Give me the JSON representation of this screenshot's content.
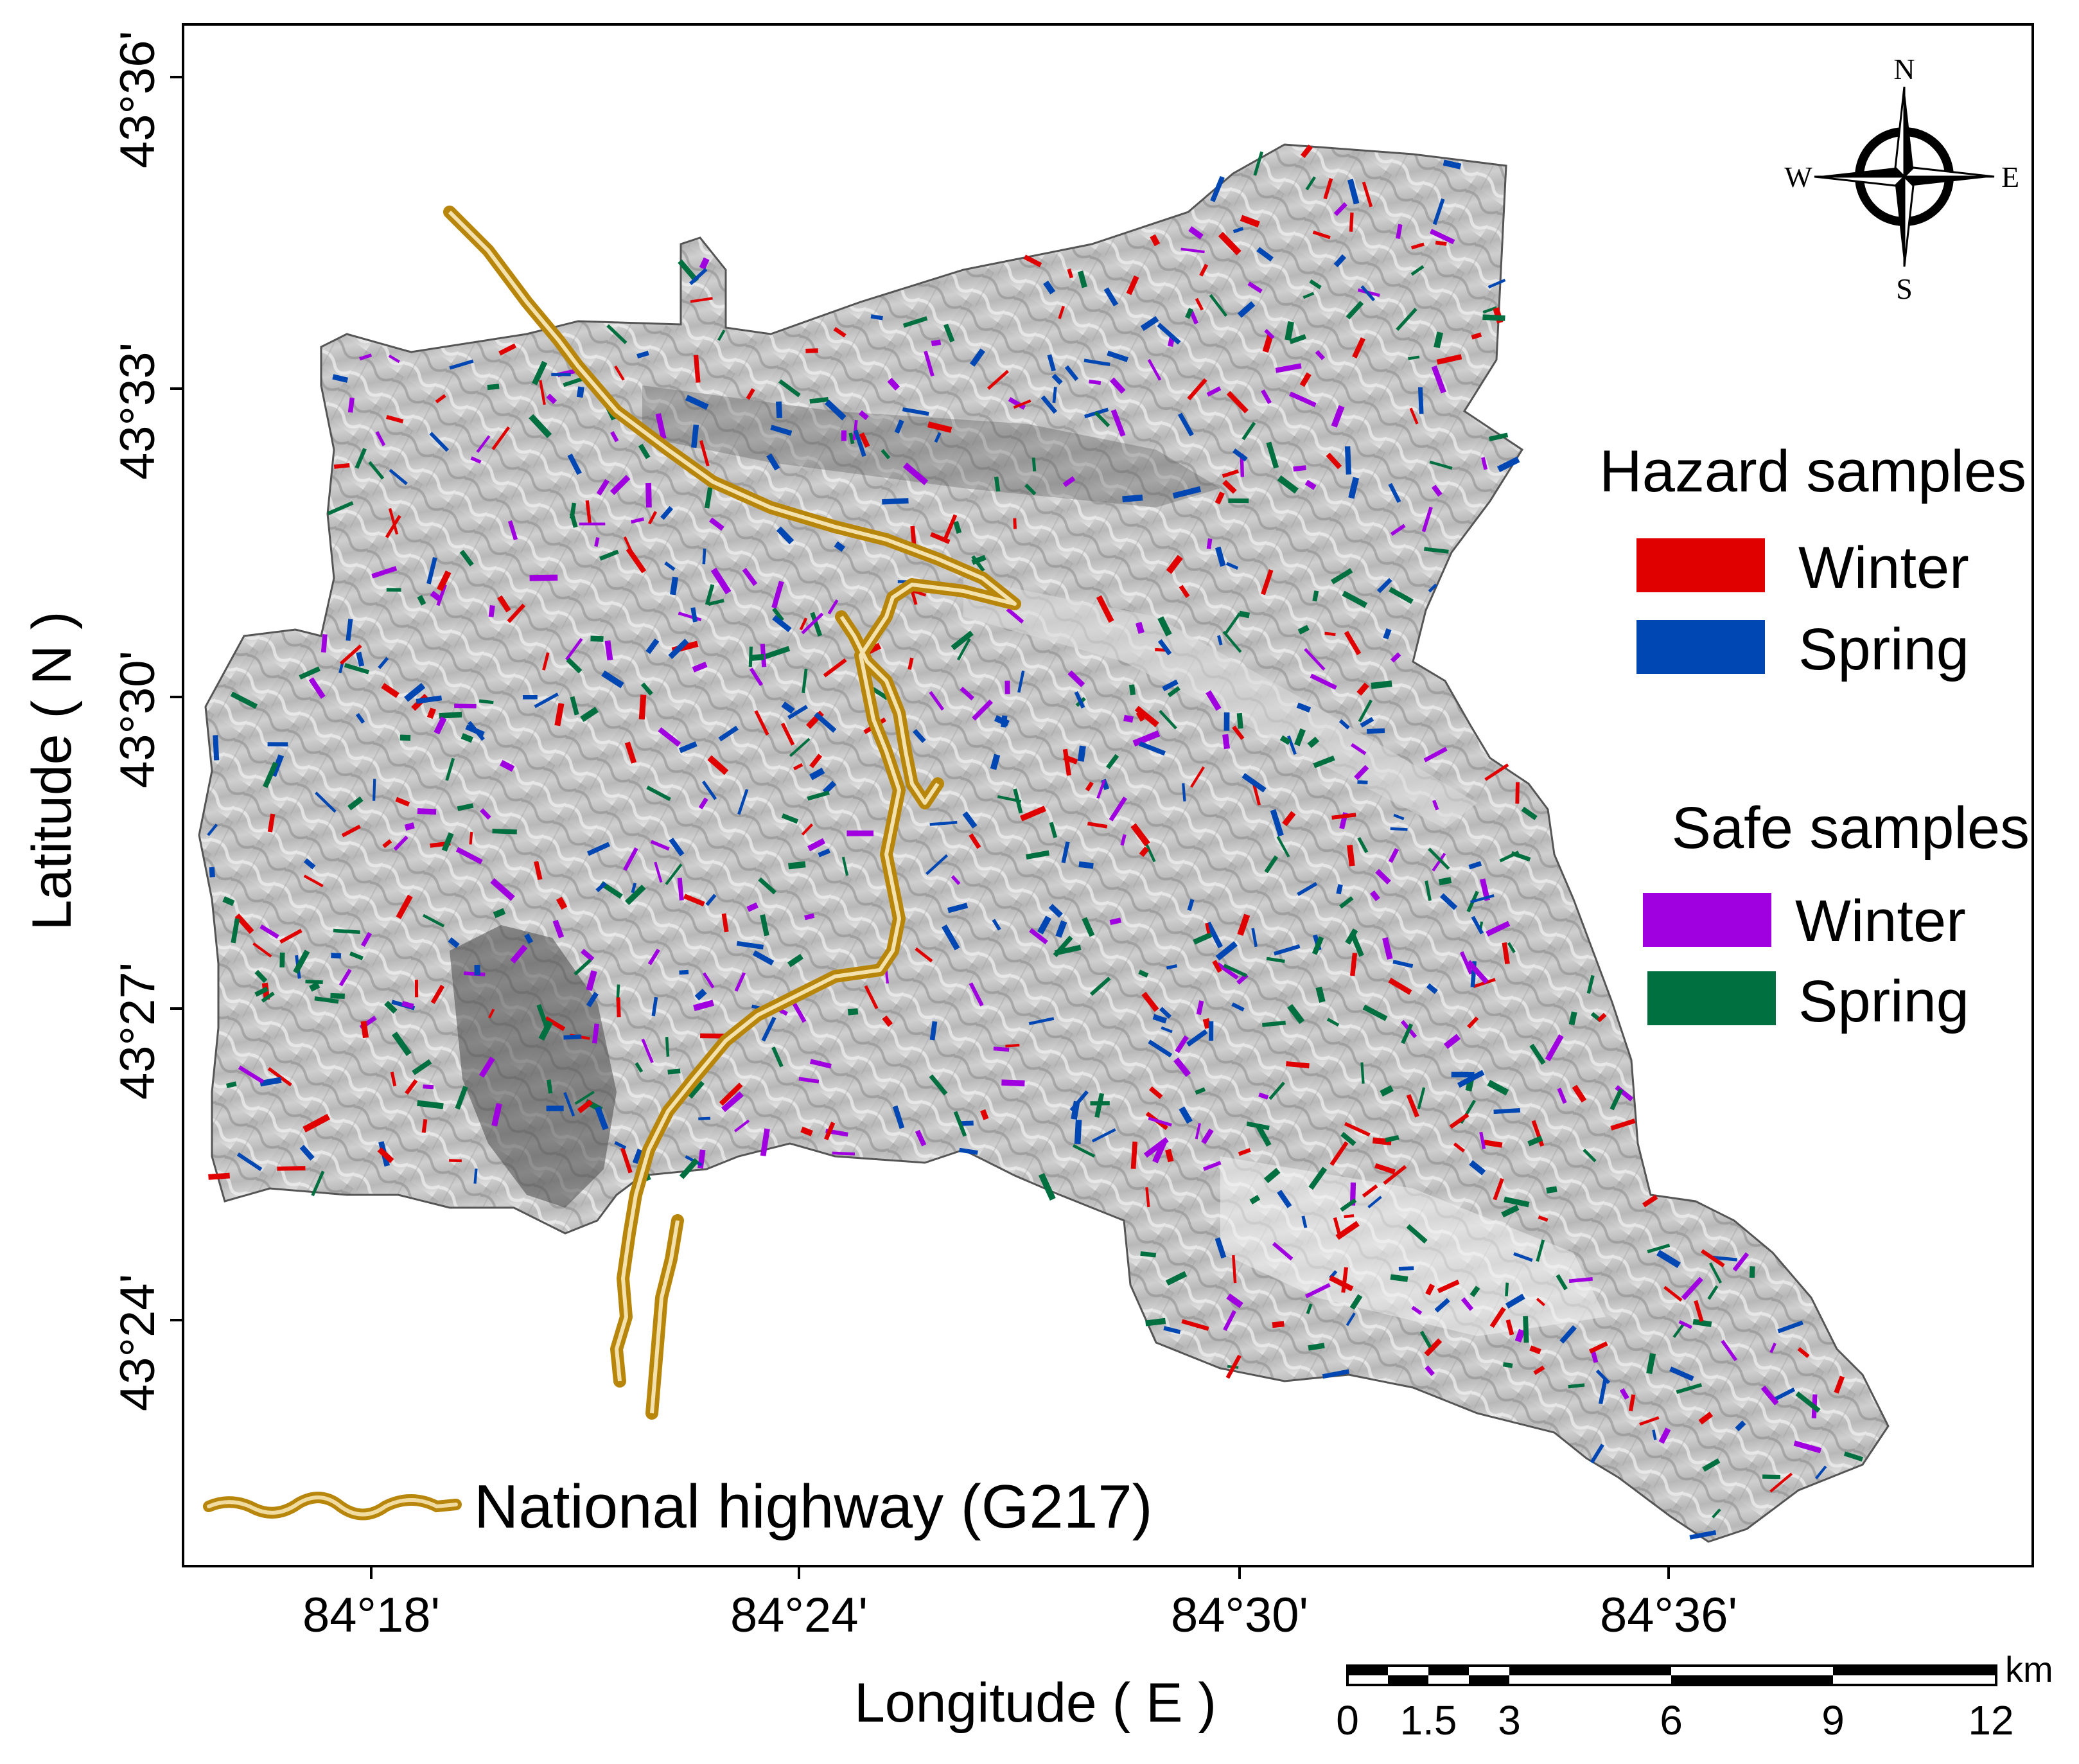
{
  "axes": {
    "x_label": "Longitude ( E )",
    "y_label": "Latitude ( N )",
    "x_ticks": [
      "84°18'",
      "84°24'",
      "84°30'",
      "84°36'"
    ],
    "y_ticks": [
      "43°36'",
      "43°33'",
      "43°30'",
      "43°27'",
      "43°24'"
    ]
  },
  "compass": {
    "n": "N",
    "s": "S",
    "e": "E",
    "w": "W"
  },
  "legend": {
    "hazard_title": "Hazard samples",
    "hazard_winter": "Winter",
    "hazard_spring": "Spring",
    "safe_title": "Safe samples",
    "safe_winter": "Winter",
    "safe_spring": "Spring",
    "highway": "National highway (G217)"
  },
  "colors": {
    "hazard_winter": "#e00000",
    "hazard_spring": "#0047b3",
    "safe_winter": "#a000e0",
    "safe_spring": "#007040",
    "highway": "#b8860b"
  },
  "scale_bar": {
    "unit": "km",
    "labels": [
      "0",
      "1.5",
      "3",
      "6",
      "9",
      "12"
    ]
  }
}
